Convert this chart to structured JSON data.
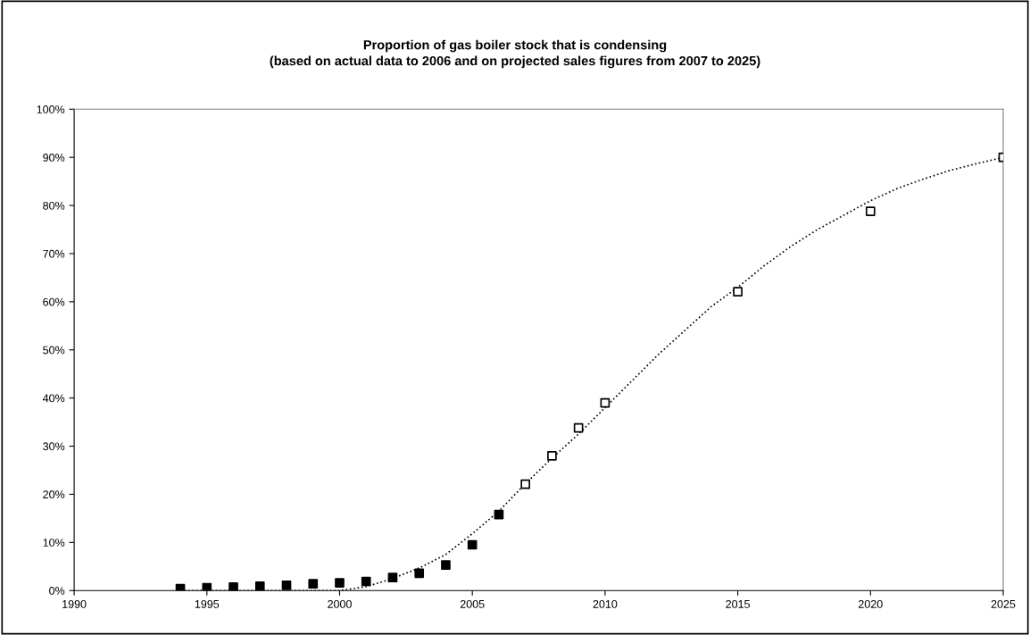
{
  "chart_data": {
    "type": "scatter",
    "title": "Proportion of gas boiler stock that is condensing\n(based on actual data to 2006 and on projected sales figures from 2007 to 2025)",
    "xlim": [
      1990,
      2025
    ],
    "xticks": [
      1990,
      1995,
      2000,
      2005,
      2010,
      2015,
      2020,
      2025
    ],
    "ylim": [
      0,
      100
    ],
    "yticks": [
      {
        "value": 0,
        "label": "0%"
      },
      {
        "value": 10,
        "label": "10%"
      },
      {
        "value": 20,
        "label": "20%"
      },
      {
        "value": 30,
        "label": "30%"
      },
      {
        "value": 40,
        "label": "40%"
      },
      {
        "value": 50,
        "label": "50%"
      },
      {
        "value": 60,
        "label": "60%"
      },
      {
        "value": 70,
        "label": "70%"
      },
      {
        "value": 80,
        "label": "80%"
      },
      {
        "value": 90,
        "label": "90%"
      },
      {
        "value": 100,
        "label": "100%"
      }
    ],
    "grid": false,
    "legend": false,
    "series": [
      {
        "type": "line",
        "color": "#000000",
        "marker": "none",
        "line_style": "dotted",
        "x": [
          1994,
          1995,
          1996,
          1997,
          1998,
          1999,
          2000,
          2001,
          2002,
          2003,
          2004,
          2005,
          2006,
          2007,
          2008,
          2009,
          2010,
          2011,
          2012,
          2013,
          2014,
          2015,
          2016,
          2017,
          2018,
          2019,
          2020,
          2021,
          2022,
          2023,
          2024,
          2025
        ],
        "values": [
          0,
          0,
          0,
          0,
          0,
          0,
          0,
          0.8,
          2.5,
          4.7,
          7.5,
          11.8,
          16.5,
          22.2,
          27.5,
          32.5,
          38,
          43.5,
          49,
          54,
          59,
          63,
          67.5,
          71.5,
          75,
          78,
          81,
          83.5,
          85.5,
          87.3,
          88.7,
          90
        ]
      },
      {
        "color": "#000000",
        "marker": "square",
        "x": [
          1994,
          1995,
          1996,
          1997,
          1998,
          1999,
          2000,
          2001,
          2002,
          2003,
          2004,
          2005,
          2006
        ],
        "values": [
          0.4,
          0.6,
          0.7,
          0.9,
          1.1,
          1.4,
          1.6,
          1.9,
          2.7,
          3.6,
          5.3,
          9.5,
          15.8
        ]
      },
      {
        "color": "#ffffff",
        "marker": "square",
        "x": [
          2007,
          2008,
          2009,
          2010,
          2015,
          2020,
          2025
        ],
        "values": [
          22.1,
          28.0,
          33.8,
          39.0,
          62.1,
          78.8,
          90
        ]
      }
    ]
  }
}
